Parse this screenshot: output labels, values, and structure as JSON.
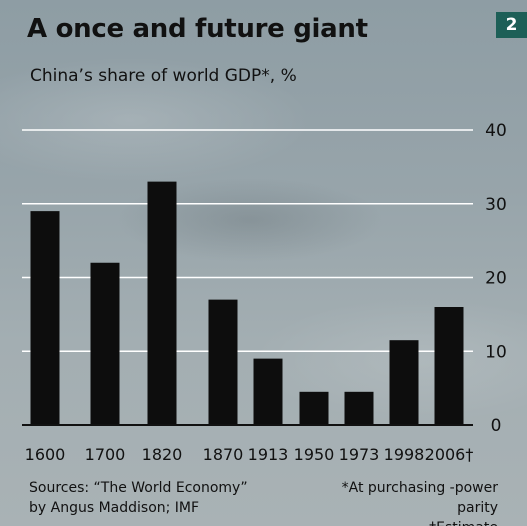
{
  "header": {
    "title": "A once and future giant",
    "chart_number": "2",
    "subtitle": "China’s share of world GDP*, %"
  },
  "chart_data": {
    "type": "bar",
    "title": "A once and future giant",
    "subtitle": "China’s share of world GDP*, %",
    "categories": [
      "1600",
      "1700",
      "1820",
      "1870",
      "1913",
      "1950",
      "1973",
      "1998",
      "2006†"
    ],
    "values": [
      29,
      22,
      33,
      17,
      9,
      4.5,
      4.5,
      11.5,
      16
    ],
    "ylim": [
      0,
      40
    ],
    "yticks": [
      "0",
      "10",
      "20",
      "30",
      "40"
    ],
    "grid": true,
    "axis_side": "right",
    "bar_color": "#0d0d0d",
    "grid_color": "#ffffff"
  },
  "footer": {
    "source_line1": "Sources: “The World Economy”",
    "source_line2": "by Angus Maddison; IMF",
    "note_line1": "*At purchasing -power parity",
    "note_line2": "†Estimate"
  }
}
